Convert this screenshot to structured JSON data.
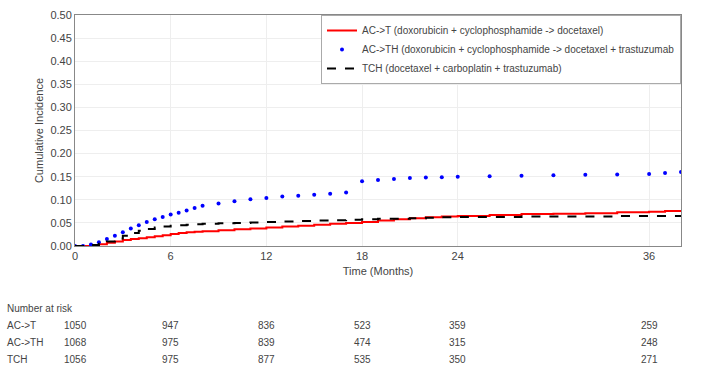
{
  "chart_data": {
    "type": "line",
    "title": "",
    "x_label": "Time (Months)",
    "y_label": "Cumulative Incidence",
    "x": [
      0,
      0.5,
      1.0,
      1.5,
      2.0,
      2.5,
      3.0,
      3.5,
      4.0,
      4.5,
      5.0,
      5.5,
      6.0,
      6.5,
      7.0,
      7.5,
      8.0,
      9.0,
      10.0,
      11.0,
      12.0,
      13.0,
      14.0,
      15.0,
      16.0,
      17.0,
      18.0,
      19.0,
      20.0,
      21.0,
      22.0,
      23.0,
      24.0,
      26.0,
      28.0,
      30.0,
      32.0,
      34.0,
      36.0,
      37.0,
      38.0
    ],
    "series": [
      {
        "name": "AC->T (doxorubicin + cyclophosphamide -> docetaxel)",
        "color": "#ff0000",
        "line_style": "solid",
        "marker": "none",
        "values": [
          0.0,
          0.0,
          0.002,
          0.004,
          0.007,
          0.01,
          0.013,
          0.015,
          0.017,
          0.019,
          0.021,
          0.023,
          0.026,
          0.028,
          0.03,
          0.031,
          0.032,
          0.034,
          0.036,
          0.038,
          0.04,
          0.042,
          0.044,
          0.046,
          0.048,
          0.05,
          0.052,
          0.055,
          0.058,
          0.06,
          0.062,
          0.064,
          0.065,
          0.067,
          0.069,
          0.07,
          0.071,
          0.073,
          0.074,
          0.076,
          0.078
        ]
      },
      {
        "name": "AC->TH (doxorubicin + cyclophosphamide -> docetaxel + trastuzumab",
        "color": "#0000ff",
        "line_style": "none",
        "marker": "dot",
        "values": [
          0.0,
          0.0,
          0.003,
          0.008,
          0.015,
          0.022,
          0.03,
          0.038,
          0.045,
          0.052,
          0.058,
          0.063,
          0.068,
          0.072,
          0.077,
          0.082,
          0.087,
          0.092,
          0.097,
          0.101,
          0.104,
          0.107,
          0.109,
          0.111,
          0.113,
          0.116,
          0.14,
          0.143,
          0.145,
          0.147,
          0.148,
          0.149,
          0.15,
          0.151,
          0.152,
          0.153,
          0.154,
          0.155,
          0.156,
          0.158,
          0.16
        ]
      },
      {
        "name": "TCH (docetaxel + carboplatin + trastuzumab)",
        "color": "#000000",
        "line_style": "dashed",
        "marker": "none",
        "values": [
          0.0,
          0.0,
          0.002,
          0.005,
          0.01,
          0.016,
          0.022,
          0.028,
          0.033,
          0.037,
          0.04,
          0.042,
          0.044,
          0.045,
          0.046,
          0.047,
          0.048,
          0.049,
          0.05,
          0.051,
          0.052,
          0.053,
          0.054,
          0.055,
          0.056,
          0.057,
          0.058,
          0.059,
          0.059,
          0.06,
          0.061,
          0.062,
          0.063,
          0.063,
          0.064,
          0.064,
          0.064,
          0.065,
          0.065,
          0.065,
          0.065
        ]
      }
    ],
    "xlim": [
      0,
      38
    ],
    "xticks": [
      0,
      6,
      12,
      18,
      24,
      36
    ],
    "ylim": [
      0.0,
      0.5
    ],
    "yticks": [
      {
        "value": 0.0,
        "label": "0.00"
      },
      {
        "value": 0.05,
        "label": "0.05"
      },
      {
        "value": 0.1,
        "label": "0.10"
      },
      {
        "value": 0.15,
        "label": "0.15"
      },
      {
        "value": 0.2,
        "label": "0.20"
      },
      {
        "value": 0.25,
        "label": "0.25"
      },
      {
        "value": 0.3,
        "label": "0.30"
      },
      {
        "value": 0.35,
        "label": "0.35"
      },
      {
        "value": 0.4,
        "label": "0.40"
      },
      {
        "value": 0.45,
        "label": "0.45"
      },
      {
        "value": 0.5,
        "label": "0.50"
      }
    ],
    "grid": true,
    "legend": "upper right",
    "risk_table": {
      "title": "Number at risk",
      "times": [
        0,
        6,
        12,
        18,
        24,
        36
      ],
      "rows": [
        {
          "name": "AC->T",
          "values": [
            1050,
            947,
            836,
            523,
            359,
            259
          ]
        },
        {
          "name": "AC->TH",
          "values": [
            1068,
            975,
            839,
            474,
            315,
            248
          ]
        },
        {
          "name": "TCH",
          "values": [
            1056,
            975,
            877,
            535,
            350,
            271
          ]
        }
      ]
    }
  }
}
